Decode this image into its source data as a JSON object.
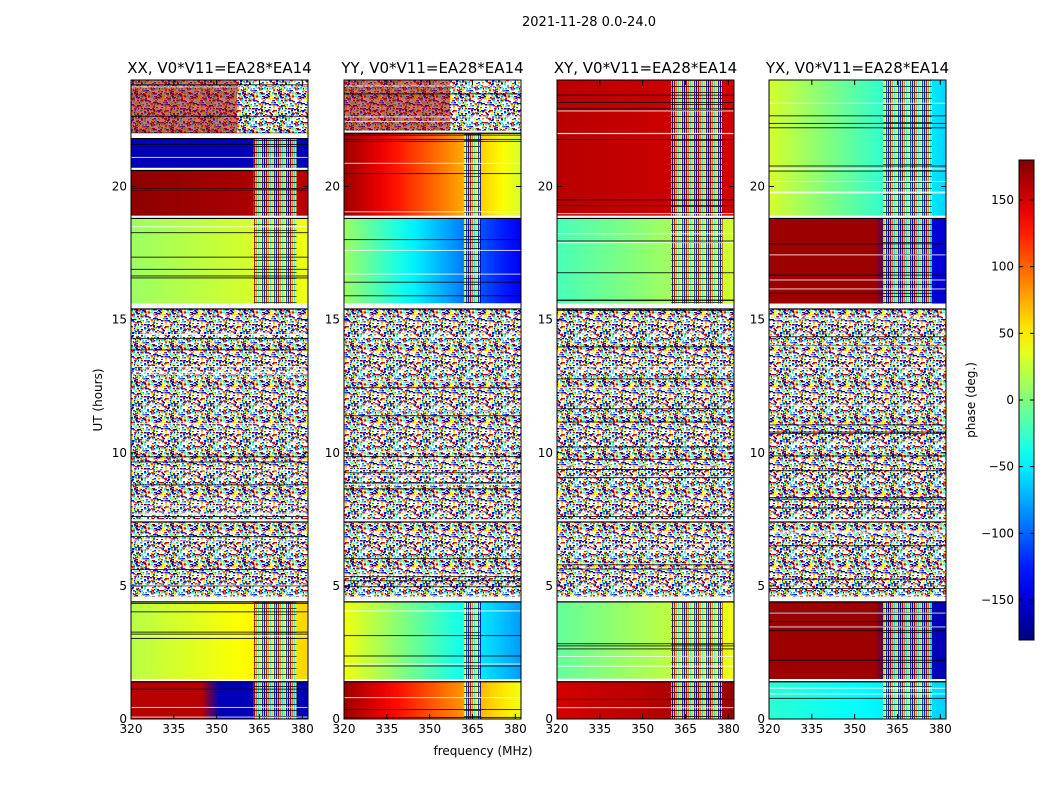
{
  "figure": {
    "title": "2021-11-28 0.0-24.0",
    "colormap": "jet"
  },
  "chart_data": [
    {
      "type": "heatmap",
      "title": "XX, V0*V11=EA28*EA14",
      "xlabel": "frequency (MHz)",
      "ylabel": "UT (hours)",
      "xlim": [
        320,
        382
      ],
      "ylim": [
        0,
        24
      ],
      "xticks": [
        320,
        335,
        350,
        365,
        380
      ],
      "yticks": [
        0,
        5,
        10,
        15,
        20
      ],
      "value_unit": "phase (deg.)",
      "rfi_band_mhz": [
        363,
        378
      ],
      "blocks": [
        {
          "ut": [
            0.0,
            1.4
          ],
          "phase_low": 160,
          "phase_high": -160,
          "break_mhz": 347
        },
        {
          "ut": [
            1.5,
            4.4
          ],
          "phase_low": 20,
          "phase_high": 60
        },
        {
          "ut": [
            4.6,
            7.4
          ],
          "phase": "noisy"
        },
        {
          "ut": [
            7.5,
            15.4
          ],
          "phase": "noisy"
        },
        {
          "ut": [
            15.6,
            18.8
          ],
          "phase_low": 10,
          "phase_high": 40
        },
        {
          "ut": [
            18.9,
            20.6
          ],
          "phase_low": 175,
          "phase_high": 160
        },
        {
          "ut": [
            20.7,
            21.8
          ],
          "phase_low": -160,
          "phase_high": -160
        },
        {
          "ut": [
            22.0,
            24.0
          ],
          "phase": "mixed"
        }
      ]
    },
    {
      "type": "heatmap",
      "title": "YY, V0*V11=EA28*EA14",
      "xlabel": "frequency (MHz)",
      "ylabel": "UT (hours)",
      "xlim": [
        320,
        382
      ],
      "ylim": [
        0,
        24
      ],
      "xticks": [
        320,
        335,
        350,
        365,
        380
      ],
      "yticks": [
        0,
        5,
        10,
        15,
        20
      ],
      "value_unit": "phase (deg.)",
      "rfi_band_mhz": [
        362,
        368
      ],
      "blocks": [
        {
          "ut": [
            0.0,
            1.4
          ],
          "phase_low": 170,
          "phase_high": 40
        },
        {
          "ut": [
            1.5,
            4.4
          ],
          "phase_low": 40,
          "phase_high": -80
        },
        {
          "ut": [
            4.6,
            7.4
          ],
          "phase": "noisy"
        },
        {
          "ut": [
            7.5,
            15.4
          ],
          "phase": "noisy"
        },
        {
          "ut": [
            15.6,
            18.8
          ],
          "phase_low": 10,
          "phase_high": -140
        },
        {
          "ut": [
            18.9,
            22.0
          ],
          "phase_low": 170,
          "phase_high": 30
        },
        {
          "ut": [
            22.1,
            24.0
          ],
          "phase": "mixed"
        }
      ]
    },
    {
      "type": "heatmap",
      "title": "XY, V0*V11=EA28*EA14",
      "xlabel": "frequency (MHz)",
      "ylabel": "UT (hours)",
      "xlim": [
        320,
        382
      ],
      "ylim": [
        0,
        24
      ],
      "xticks": [
        320,
        335,
        350,
        365,
        380
      ],
      "yticks": [
        0,
        5,
        10,
        15,
        20
      ],
      "value_unit": "phase (deg.)",
      "rfi_band_mhz": [
        360,
        378
      ],
      "blocks": [
        {
          "ut": [
            0.0,
            1.4
          ],
          "phase_low": 150,
          "phase_high": 170
        },
        {
          "ut": [
            1.5,
            4.4
          ],
          "phase_low": -10,
          "phase_high": 40
        },
        {
          "ut": [
            4.6,
            7.4
          ],
          "phase": "noisy"
        },
        {
          "ut": [
            7.5,
            15.4
          ],
          "phase": "noisy"
        },
        {
          "ut": [
            15.6,
            18.8
          ],
          "phase_low": -20,
          "phase_high": 30
        },
        {
          "ut": [
            18.9,
            24.0
          ],
          "phase_low": 160,
          "phase_high": 150
        }
      ]
    },
    {
      "type": "heatmap",
      "title": "YX, V0*V11=EA28*EA14",
      "xlabel": "frequency (MHz)",
      "ylabel": "UT (hours)",
      "xlim": [
        320,
        382
      ],
      "ylim": [
        0,
        24
      ],
      "xticks": [
        320,
        335,
        350,
        365,
        380
      ],
      "yticks": [
        0,
        5,
        10,
        15,
        20
      ],
      "value_unit": "phase (deg.)",
      "rfi_band_mhz": [
        360,
        377
      ],
      "blocks": [
        {
          "ut": [
            0.0,
            1.4
          ],
          "phase_low": -30,
          "phase_high": -60
        },
        {
          "ut": [
            1.5,
            4.4
          ],
          "phase_low": 170,
          "phase_high": -160,
          "break_mhz": 360
        },
        {
          "ut": [
            4.6,
            7.4
          ],
          "phase": "noisy"
        },
        {
          "ut": [
            7.5,
            15.4
          ],
          "phase": "noisy"
        },
        {
          "ut": [
            15.6,
            18.8
          ],
          "phase_low": 170,
          "phase_high": -150,
          "break_mhz": 360
        },
        {
          "ut": [
            18.9,
            24.0
          ],
          "phase_low": 30,
          "phase_high": -60
        }
      ]
    }
  ],
  "colorbar": {
    "label": "phase (deg.)",
    "range": [
      -180,
      180
    ],
    "ticks": [
      -150,
      -100,
      -50,
      0,
      50,
      100,
      150
    ],
    "tick_labels": [
      "−150",
      "−100",
      "−50",
      "0",
      "50",
      "100",
      "150"
    ]
  }
}
